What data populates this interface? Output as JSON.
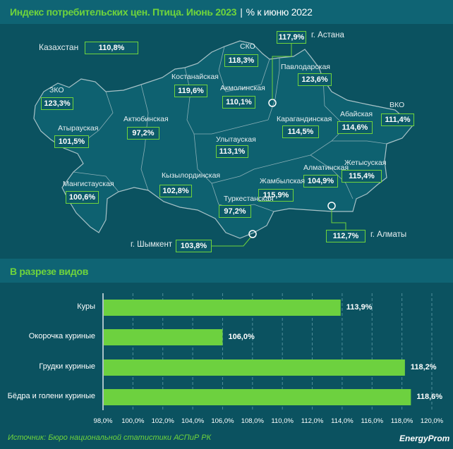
{
  "header": {
    "title": "Индекс потребительских цен. Птица. Июнь 2023",
    "separator": "|",
    "subtitle": "% к июню 2022"
  },
  "map": {
    "kazakhstan": {
      "name": "Казахстан",
      "value": "110,8%"
    },
    "regions": [
      {
        "name": "г. Астана",
        "value": "117,9%"
      },
      {
        "name": "СКО",
        "value": "118,3%"
      },
      {
        "name": "Павлодарская",
        "value": "123,6%"
      },
      {
        "name": "Костанайская",
        "value": "119,6%"
      },
      {
        "name": "Акмолинская",
        "value": "110,1%"
      },
      {
        "name": "ЗКО",
        "value": "123,3%"
      },
      {
        "name": "Актюбинская",
        "value": "97,2%"
      },
      {
        "name": "Карагандинская",
        "value": "114,5%"
      },
      {
        "name": "Абайская",
        "value": "114,6%"
      },
      {
        "name": "ВКО",
        "value": "111,4%"
      },
      {
        "name": "Атырауская",
        "value": "101,5%"
      },
      {
        "name": "Улытауская",
        "value": "113,1%"
      },
      {
        "name": "Кызылординская",
        "value": "102,8%"
      },
      {
        "name": "Алматинская",
        "value": "104,9%"
      },
      {
        "name": "Жетысуская",
        "value": "115,4%"
      },
      {
        "name": "Жамбылская",
        "value": "115,9%"
      },
      {
        "name": "Мангистауская",
        "value": "100,6%"
      },
      {
        "name": "Туркестанская",
        "value": "97,2%"
      },
      {
        "name": "г. Шымкент",
        "value": "103,8%"
      },
      {
        "name": "г. Алматы",
        "value": "112,7%"
      }
    ]
  },
  "section2_title": "В разрезе видов",
  "chart_data": {
    "type": "bar",
    "orientation": "horizontal",
    "categories": [
      "Куры",
      "Окорочка куриные",
      "Грудки куриные",
      "Бёдра и голени куриные"
    ],
    "values": [
      113.9,
      106.0,
      118.2,
      118.6
    ],
    "value_labels": [
      "113,9%",
      "106,0%",
      "118,2%",
      "118,6%"
    ],
    "xlim": [
      98,
      120
    ],
    "xticks": [
      "98,0%",
      "100,0%",
      "102,0%",
      "104,0%",
      "106,0%",
      "108,0%",
      "110,0%",
      "112,0%",
      "114,0%",
      "116,0%",
      "118,0%",
      "120,0%"
    ],
    "grid": true,
    "bar_color": "#6dd13f"
  },
  "footer": {
    "source": "Источник: Бюро национальной статистики АСПиР РК",
    "logo": "EnergyProm"
  }
}
